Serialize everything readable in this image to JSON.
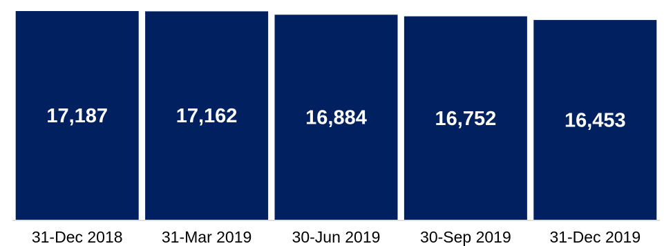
{
  "chart_data": {
    "type": "bar",
    "categories": [
      "31-Dec 2018",
      "31-Mar 2019",
      "30-Jun 2019",
      "30-Sep 2019",
      "31-Dec 2019"
    ],
    "values": [
      17187,
      17162,
      16884,
      16752,
      16453
    ],
    "data_labels": [
      "17,187",
      "17,162",
      "16,884",
      "16,752",
      "16,453"
    ],
    "title": "",
    "xlabel": "",
    "ylabel": "",
    "ylim": [
      0,
      17187
    ],
    "grid": false,
    "legend": "none",
    "colors": {
      "bar": "#002060",
      "bar_label": "#ffffff",
      "axis_label": "#000000",
      "axis_line": "#bfbfbf"
    }
  }
}
